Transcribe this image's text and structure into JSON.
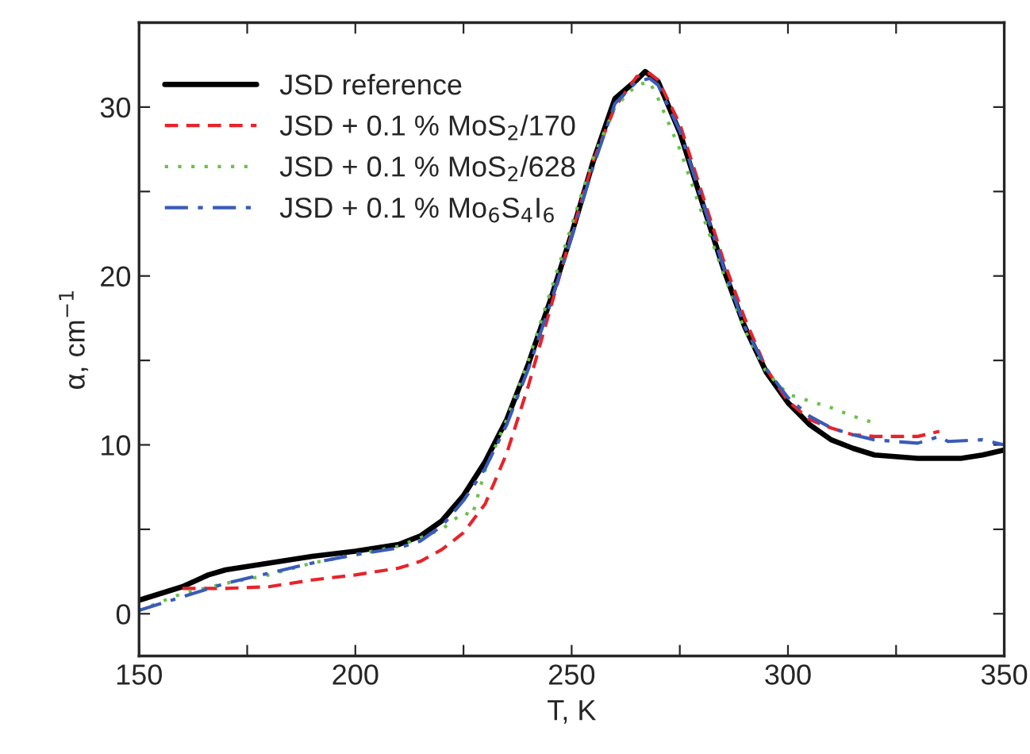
{
  "chart_data": {
    "type": "line",
    "xlabel": "T, K",
    "ylabel": "α, cm$^{−1}$",
    "xlim": [
      150,
      350
    ],
    "xticks": [
      150,
      {
        "value": 175,
        "label": null
      },
      200,
      {
        "value": 225,
        "label": null
      },
      250,
      {
        "value": 275,
        "label": null
      },
      300,
      {
        "value": 325,
        "label": null
      },
      350
    ],
    "ylim": [
      -2.5,
      35
    ],
    "yticks": [
      0,
      {
        "value": 5,
        "label": null
      },
      10,
      {
        "value": 15,
        "label": null
      },
      20,
      {
        "value": 25,
        "label": null
      },
      30
    ],
    "grid": false,
    "legend": "top left",
    "series": [
      {
        "name": "JSD reference",
        "color": "#000000",
        "line_style": "solid",
        "x": [
          150,
          160,
          166,
          170,
          180,
          190,
          200,
          210,
          215,
          220,
          225,
          230,
          235,
          240,
          245,
          250,
          255,
          260,
          265,
          267,
          270,
          275,
          280,
          285,
          290,
          295,
          300,
          305,
          310,
          315,
          320,
          330,
          340,
          345,
          350
        ],
        "values": [
          0.8,
          1.6,
          2.3,
          2.6,
          3.0,
          3.4,
          3.7,
          4.1,
          4.6,
          5.5,
          7.0,
          9.0,
          11.5,
          14.8,
          18.5,
          22.5,
          26.8,
          30.5,
          31.6,
          32.1,
          31.5,
          28.5,
          24.5,
          20.5,
          17.0,
          14.3,
          12.5,
          11.2,
          10.3,
          9.8,
          9.4,
          9.2,
          9.2,
          9.4,
          9.7
        ]
      },
      {
        "name": "JSD + 0.1 % MoS$_{2}$/170",
        "color": "#e8232a",
        "line_style": "dashed",
        "x": [
          160,
          165,
          170,
          180,
          190,
          200,
          210,
          215,
          220,
          225,
          230,
          235,
          240,
          245,
          250,
          255,
          260,
          265,
          268,
          270,
          275,
          280,
          285,
          290,
          295,
          300,
          305,
          310,
          315,
          320,
          330,
          335
        ],
        "values": [
          1.5,
          1.5,
          1.5,
          1.6,
          2.0,
          2.3,
          2.7,
          3.1,
          3.8,
          4.8,
          6.5,
          9.5,
          13.5,
          18.0,
          22.5,
          26.8,
          30.0,
          31.8,
          32.0,
          31.6,
          29.0,
          25.0,
          21.0,
          17.5,
          14.5,
          12.6,
          11.5,
          11.0,
          10.6,
          10.5,
          10.5,
          10.8
        ]
      },
      {
        "name": "JSD + 0.1 % MoS$_{2}$/628",
        "color": "#6cc04a",
        "line_style": "dotted",
        "x": [
          150,
          160,
          170,
          180,
          190,
          200,
          210,
          220,
          225,
          227,
          230,
          235,
          240,
          245,
          250,
          255,
          260,
          265,
          268,
          270,
          275,
          280,
          285,
          290,
          295,
          300,
          305,
          310,
          315,
          320
        ],
        "values": [
          0.2,
          1.2,
          1.8,
          2.3,
          3.0,
          3.5,
          4.0,
          5.0,
          6.0,
          5.8,
          8.5,
          11.5,
          15.0,
          19.0,
          23.0,
          27.0,
          30.0,
          31.3,
          31.5,
          30.5,
          27.5,
          23.8,
          20.2,
          16.8,
          14.3,
          13.0,
          12.6,
          12.2,
          11.7,
          11.3
        ]
      },
      {
        "name": "JSD + 0.1 % Mo$_{6}$S$_{4}$I$_{6}$",
        "color": "#3a5bb8",
        "line_style": "dashdot",
        "x": [
          150,
          160,
          170,
          180,
          190,
          200,
          210,
          215,
          220,
          225,
          230,
          235,
          240,
          245,
          250,
          255,
          260,
          265,
          268,
          270,
          275,
          280,
          285,
          290,
          295,
          300,
          305,
          310,
          315,
          320,
          330,
          335,
          337,
          345,
          350
        ],
        "values": [
          0.2,
          1.0,
          1.8,
          2.4,
          3.0,
          3.5,
          3.9,
          4.3,
          5.2,
          6.7,
          8.6,
          11.2,
          14.5,
          18.3,
          22.3,
          26.5,
          30.2,
          31.5,
          31.7,
          31.3,
          28.6,
          24.6,
          20.6,
          17.0,
          14.5,
          12.8,
          11.7,
          11.0,
          10.6,
          10.3,
          10.1,
          10.5,
          10.2,
          10.3,
          10.0
        ]
      }
    ]
  }
}
